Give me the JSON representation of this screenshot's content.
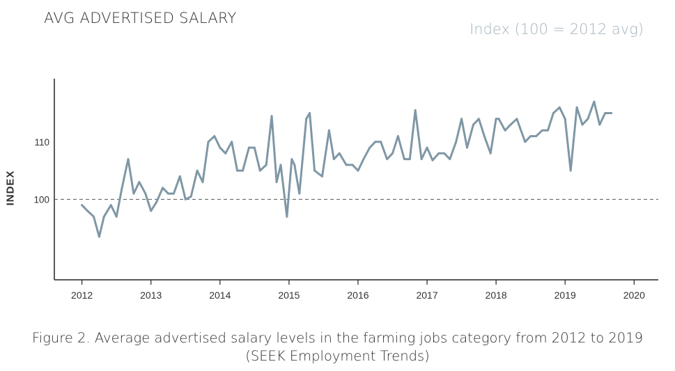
{
  "header": {
    "title": "AVG ADVERTISED SALARY",
    "subtitle": "Index (100 = 2012 avg)"
  },
  "caption": {
    "line1": "Figure 2. Average advertised salary levels in the farming jobs category from 2012 to 2019",
    "line2": "(SEEK  Employment Trends)"
  },
  "chart_data": {
    "type": "line",
    "title": "AVG ADVERTISED SALARY",
    "subtitle": "Index (100 = 2012 avg)",
    "ylabel": "INDEX",
    "xlabel": "",
    "xlim": [
      2011.6,
      2020.35
    ],
    "ylim": [
      86,
      121
    ],
    "xticks": [
      "2012",
      "2013",
      "2014",
      "2015",
      "2016",
      "2017",
      "2018",
      "2019",
      "2020"
    ],
    "yticks": [
      "100",
      "110"
    ],
    "reference_line": {
      "y": 100,
      "style": "dashed"
    },
    "line_color": "#7f97a5",
    "grid": false,
    "legend": "none",
    "series": [
      {
        "x": [
          2012.0,
          2012.08,
          2012.17,
          2012.25,
          2012.32,
          2012.42,
          2012.5,
          2012.58,
          2012.67,
          2012.75,
          2012.83,
          2012.92,
          2013.0,
          2013.08,
          2013.17,
          2013.25,
          2013.33,
          2013.42,
          2013.5,
          2013.58,
          2013.67,
          2013.75,
          2013.83,
          2013.92,
          2014.0,
          2014.08,
          2014.17,
          2014.25,
          2014.33,
          2014.42,
          2014.5,
          2014.58,
          2014.67,
          2014.75,
          2014.82,
          2014.88,
          2014.97,
          2015.04,
          2015.08,
          2015.15,
          2015.25,
          2015.3,
          2015.37,
          2015.48,
          2015.58,
          2015.65,
          2015.73,
          2015.83,
          2015.92,
          2016.0,
          2016.08,
          2016.17,
          2016.25,
          2016.33,
          2016.42,
          2016.5,
          2016.58,
          2016.67,
          2016.75,
          2016.83,
          2016.92,
          2017.0,
          2017.08,
          2017.17,
          2017.25,
          2017.33,
          2017.42,
          2017.5,
          2017.58,
          2017.67,
          2017.75,
          2017.83,
          2017.92,
          2018.0,
          2018.04,
          2018.13,
          2018.21,
          2018.3,
          2018.42,
          2018.5,
          2018.58,
          2018.67,
          2018.75,
          2018.83,
          2018.92,
          2019.0,
          2019.08,
          2019.17,
          2019.25,
          2019.33,
          2019.42,
          2019.5,
          2019.58,
          2019.67
        ],
        "y": [
          99.0,
          98.0,
          97.0,
          93.5,
          97.0,
          99.0,
          97.0,
          102.0,
          107.0,
          101.0,
          103.0,
          101.0,
          98.0,
          99.5,
          102.0,
          101.0,
          101.0,
          104.0,
          100.0,
          100.5,
          105.0,
          103.0,
          110.0,
          111.0,
          109.0,
          108.0,
          110.0,
          105.0,
          105.0,
          109.0,
          109.0,
          105.0,
          106.0,
          114.5,
          103.0,
          106.0,
          97.0,
          107.0,
          106.0,
          101.0,
          114.0,
          115.0,
          105.0,
          104.0,
          112.0,
          107.0,
          108.0,
          106.0,
          106.0,
          105.0,
          107.0,
          109.0,
          110.0,
          110.0,
          107.0,
          108.0,
          111.0,
          107.0,
          107.0,
          115.5,
          107.0,
          109.0,
          106.8,
          108.0,
          108.0,
          107.0,
          110.0,
          114.0,
          109.0,
          113.0,
          114.0,
          111.0,
          108.0,
          114.0,
          114.0,
          112.0,
          113.0,
          114.0,
          110.0,
          111.0,
          111.0,
          112.0,
          112.0,
          115.0,
          116.0,
          114.0,
          105.0,
          116.0,
          113.0,
          114.0,
          117.0,
          113.0,
          115.0,
          115.0
        ]
      }
    ]
  }
}
